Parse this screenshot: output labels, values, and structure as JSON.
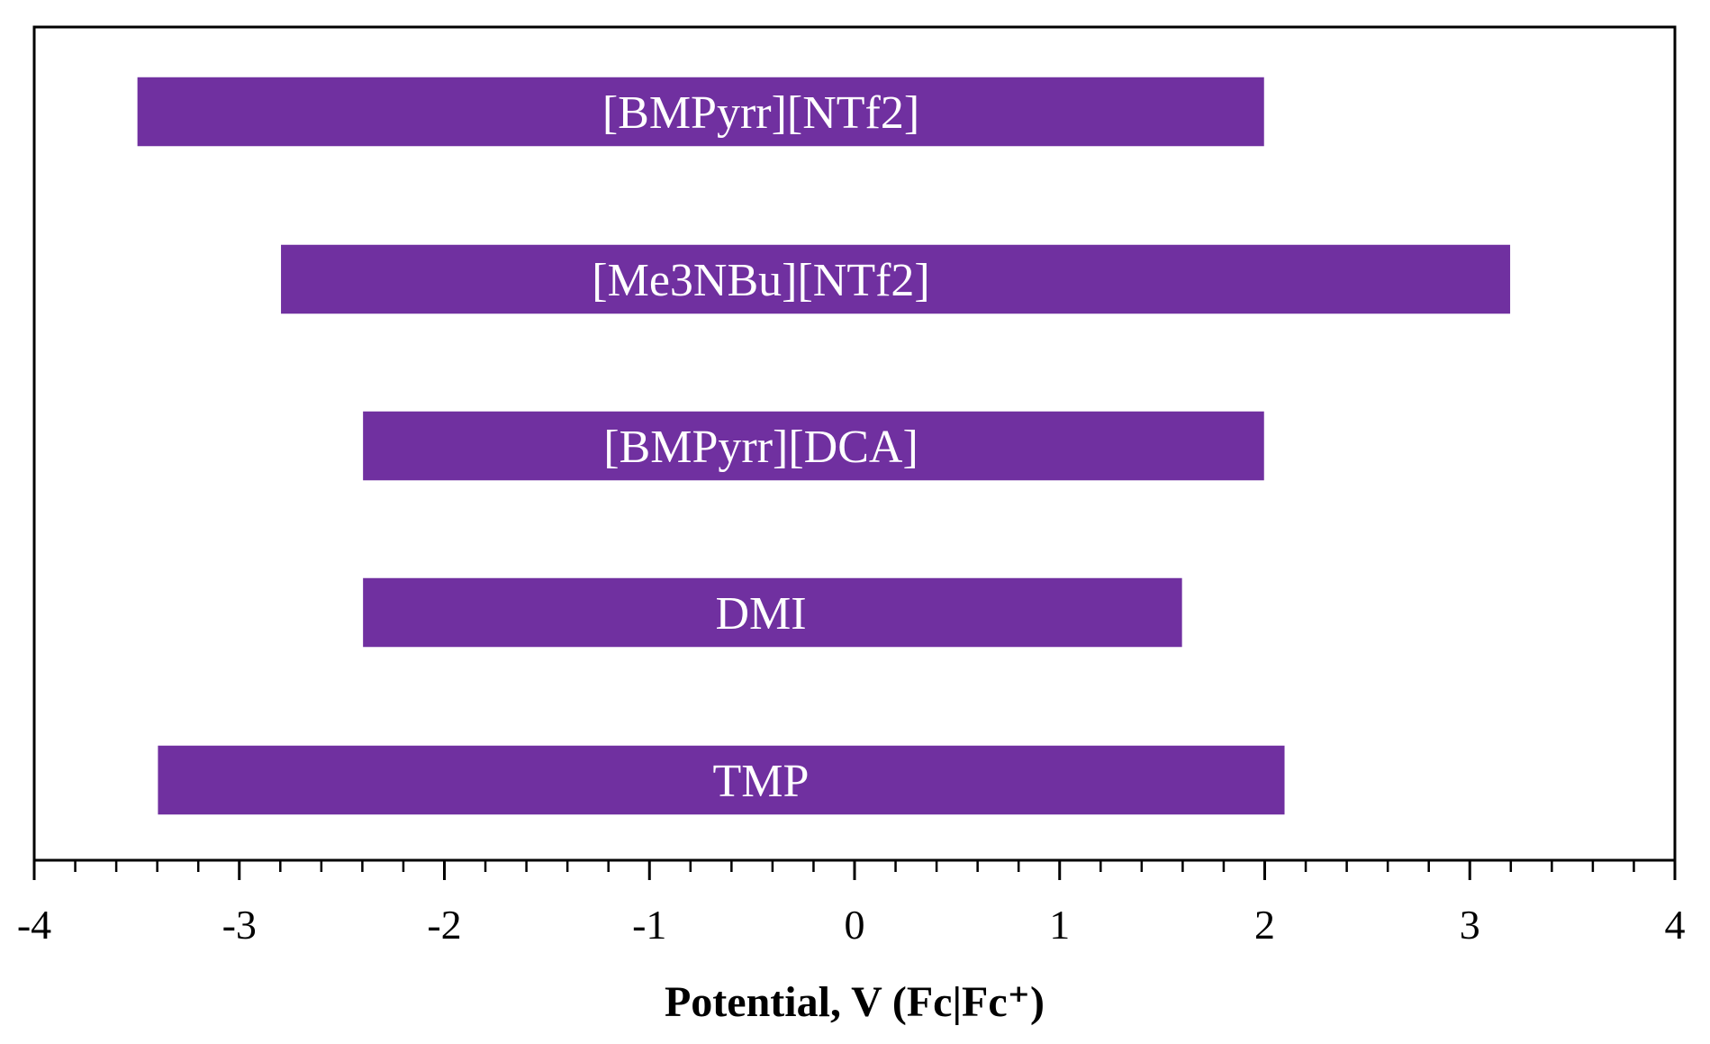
{
  "chart_data": {
    "type": "bar",
    "orientation": "horizontal-range",
    "categories": [
      "[BMPyrr][NTf2]",
      "[Me3NBu][NTf2]",
      "[BMPyrr][DCA]",
      "DMI",
      "TMP"
    ],
    "series": [
      {
        "values": [
          [
            -3.5,
            2.0
          ],
          [
            -2.8,
            3.2
          ],
          [
            -2.4,
            2.0
          ],
          [
            -2.4,
            1.6
          ],
          [
            -3.4,
            2.1
          ]
        ]
      }
    ],
    "bar_labels": [
      "[BMPyrr][NTf2]",
      "[Me3NBu][NTf2]",
      "[BMPyrr][DCA]",
      "DMI",
      "TMP"
    ],
    "title": "",
    "xlabel": "Potential, V (Fc|Fc⁺)",
    "ylabel": "",
    "xlim": [
      -4,
      4
    ],
    "xticks": [
      "-4",
      "-3",
      "-2",
      "-1",
      "0",
      "1",
      "2",
      "3",
      "4"
    ],
    "grid": false,
    "legend": "none",
    "bar_color": "#7030a0",
    "label_color": "#ffffff"
  }
}
